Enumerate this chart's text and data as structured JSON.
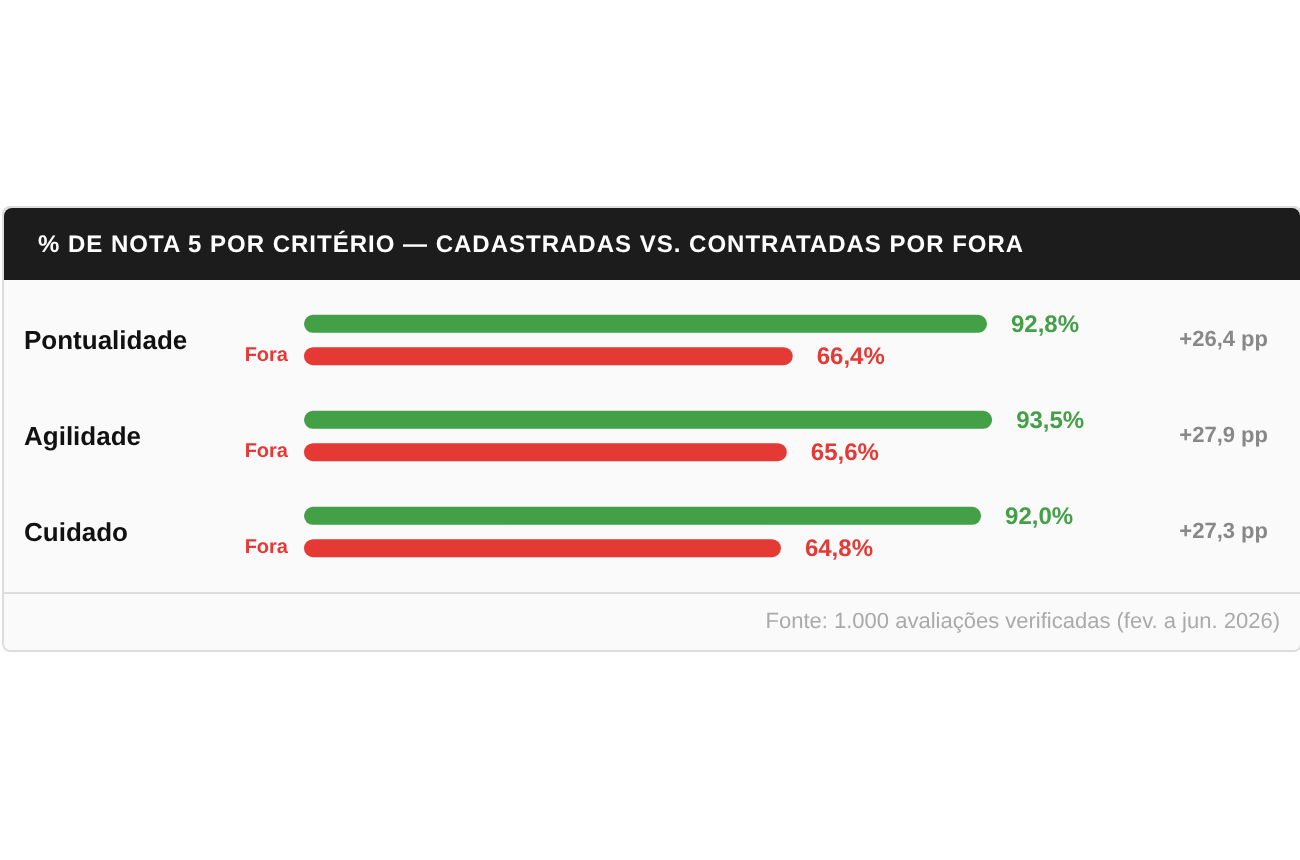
{
  "chart_data": {
    "type": "bar",
    "orientation": "horizontal",
    "title": "% DE NOTA 5 POR CRITÉRIO — CADASTRADAS VS. CONTRATADAS POR FORA",
    "categories": [
      "Pontualidade",
      "Agilidade",
      "Cuidado"
    ],
    "tick_labels": "y",
    "series": [
      {
        "color": "#43a047",
        "values": [
          92.8,
          93.5,
          92.0
        ],
        "value_labels": [
          "92,8%",
          "93,5%",
          "92,0%"
        ]
      },
      {
        "name": "Fora",
        "color": "#e53935",
        "values": [
          66.4,
          65.6,
          64.8
        ],
        "value_labels": [
          "66,4%",
          "65,6%",
          "64,8%"
        ]
      }
    ],
    "annotations": [
      "+26,4 pp",
      "+27,9 pp",
      "+27,3 pp",
      "Fonte: 1.000 avaliações verificadas (fev. a jun. 2026)"
    ]
  }
}
